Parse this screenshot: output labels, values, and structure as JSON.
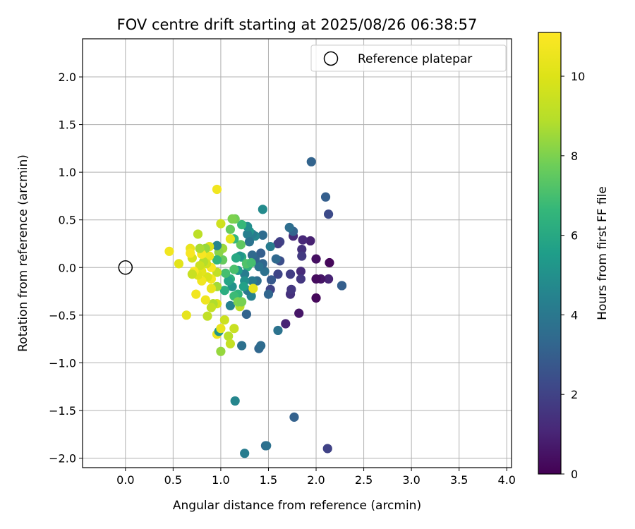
{
  "chart_data": {
    "type": "scatter",
    "title": "FOV centre drift starting at 2025/08/26 06:38:57",
    "xlabel": "Angular distance from reference (arcmin)",
    "ylabel": "Rotation from reference (arcmin)",
    "xlim": [
      -0.45,
      4.05
    ],
    "ylim": [
      -2.1,
      2.4
    ],
    "xticks": [
      "0.0",
      "0.5",
      "1.0",
      "1.5",
      "2.0",
      "2.5",
      "3.0",
      "3.5",
      "4.0"
    ],
    "xtick_values": [
      0,
      0.5,
      1,
      1.5,
      2,
      2.5,
      3,
      3.5,
      4
    ],
    "yticks": [
      "−2.0",
      "−1.5",
      "−1.0",
      "−0.5",
      "0.0",
      "0.5",
      "1.0",
      "1.5",
      "2.0"
    ],
    "ytick_values": [
      -2,
      -1.5,
      -1,
      -0.5,
      0,
      0.5,
      1,
      1.5,
      2
    ],
    "grid": true,
    "legend": {
      "placement": "top-right",
      "entries": [
        "Reference platepar"
      ]
    },
    "reference_point": {
      "x": 0.0,
      "y": 0.0
    },
    "colorbar": {
      "label": "Hours from first FF file",
      "colormap": "viridis",
      "range": [
        0,
        11.1
      ],
      "ticks": [
        "0",
        "2",
        "4",
        "6",
        "8",
        "10"
      ],
      "tick_values": [
        0,
        2,
        4,
        6,
        8,
        10
      ]
    },
    "points": [
      {
        "x": 1.95,
        "y": 1.11,
        "h": 3.2
      },
      {
        "x": 2.1,
        "y": 0.74,
        "h": 3.0
      },
      {
        "x": 2.13,
        "y": 0.56,
        "h": 2.3
      },
      {
        "x": 2.27,
        "y": -0.19,
        "h": 3.5
      },
      {
        "x": 2.27,
        "y": -0.19,
        "h": 3.0
      },
      {
        "x": 2.13,
        "y": -0.12,
        "h": 1.0
      },
      {
        "x": 2.05,
        "y": -0.12,
        "h": 0.6
      },
      {
        "x": 2.0,
        "y": -0.12,
        "h": 0.3
      },
      {
        "x": 2.14,
        "y": 0.05,
        "h": 0.2
      },
      {
        "x": 2.0,
        "y": 0.09,
        "h": 0.4
      },
      {
        "x": 2.0,
        "y": -0.32,
        "h": 0.2
      },
      {
        "x": 1.94,
        "y": 0.28,
        "h": 0.9
      },
      {
        "x": 1.86,
        "y": 0.29,
        "h": 1.1
      },
      {
        "x": 1.85,
        "y": 0.19,
        "h": 1.4
      },
      {
        "x": 1.85,
        "y": 0.12,
        "h": 1.7
      },
      {
        "x": 1.84,
        "y": -0.04,
        "h": 1.2
      },
      {
        "x": 1.84,
        "y": -0.12,
        "h": 1.6
      },
      {
        "x": 1.76,
        "y": 0.33,
        "h": 1.2
      },
      {
        "x": 1.76,
        "y": 0.38,
        "h": 3.2
      },
      {
        "x": 1.72,
        "y": 0.42,
        "h": 3.6
      },
      {
        "x": 1.73,
        "y": -0.07,
        "h": 1.8
      },
      {
        "x": 1.73,
        "y": -0.28,
        "h": 1.4
      },
      {
        "x": 1.74,
        "y": -0.23,
        "h": 1.6
      },
      {
        "x": 1.82,
        "y": -0.48,
        "h": 0.6
      },
      {
        "x": 1.68,
        "y": -0.59,
        "h": 1.0
      },
      {
        "x": 1.6,
        "y": -0.66,
        "h": 3.8
      },
      {
        "x": 1.62,
        "y": 0.27,
        "h": 2.0
      },
      {
        "x": 1.6,
        "y": 0.25,
        "h": 1.8
      },
      {
        "x": 1.62,
        "y": 0.07,
        "h": 2.4
      },
      {
        "x": 1.58,
        "y": 0.09,
        "h": 3.4
      },
      {
        "x": 1.6,
        "y": -0.07,
        "h": 2.1
      },
      {
        "x": 1.53,
        "y": -0.13,
        "h": 2.8
      },
      {
        "x": 1.52,
        "y": -0.23,
        "h": 2.0
      },
      {
        "x": 1.5,
        "y": -0.28,
        "h": 3.3
      },
      {
        "x": 1.52,
        "y": 0.22,
        "h": 4.2
      },
      {
        "x": 1.46,
        "y": -0.04,
        "h": 3.7
      },
      {
        "x": 1.44,
        "y": 0.04,
        "h": 3.3
      },
      {
        "x": 1.42,
        "y": 0.15,
        "h": 3.0
      },
      {
        "x": 1.44,
        "y": 0.34,
        "h": 3.5
      },
      {
        "x": 1.44,
        "y": 0.61,
        "h": 4.8
      },
      {
        "x": 1.4,
        "y": 0.01,
        "h": 3.8
      },
      {
        "x": 1.38,
        "y": -0.14,
        "h": 3.6
      },
      {
        "x": 1.36,
        "y": 0.09,
        "h": 3.2
      },
      {
        "x": 1.36,
        "y": 0.33,
        "h": 4.6
      },
      {
        "x": 1.33,
        "y": 0.35,
        "h": 4.2
      },
      {
        "x": 1.3,
        "y": 0.38,
        "h": 5.2
      },
      {
        "x": 1.28,
        "y": 0.35,
        "h": 4.3
      },
      {
        "x": 1.28,
        "y": 0.43,
        "h": 4.9
      },
      {
        "x": 1.3,
        "y": 0.27,
        "h": 3.8
      },
      {
        "x": 1.33,
        "y": 0.13,
        "h": 3.4
      },
      {
        "x": 1.33,
        "y": -0.14,
        "h": 4.1
      },
      {
        "x": 1.32,
        "y": -0.3,
        "h": 4.4
      },
      {
        "x": 1.28,
        "y": -0.24,
        "h": 4.0
      },
      {
        "x": 1.27,
        "y": -0.49,
        "h": 3.2
      },
      {
        "x": 1.3,
        "y": 0.04,
        "h": 5.6
      },
      {
        "x": 1.28,
        "y": 0.01,
        "h": 6.4
      },
      {
        "x": 1.25,
        "y": -0.07,
        "h": 4.2
      },
      {
        "x": 1.25,
        "y": -0.14,
        "h": 5.0
      },
      {
        "x": 1.24,
        "y": -0.2,
        "h": 5.7
      },
      {
        "x": 1.22,
        "y": 0.11,
        "h": 6.1
      },
      {
        "x": 1.22,
        "y": 0.45,
        "h": 6.7
      },
      {
        "x": 1.21,
        "y": 0.24,
        "h": 7.5
      },
      {
        "x": 1.2,
        "y": 0.12,
        "h": 5.2
      },
      {
        "x": 1.18,
        "y": -0.03,
        "h": 5.4
      },
      {
        "x": 1.18,
        "y": -0.28,
        "h": 6.5
      },
      {
        "x": 1.2,
        "y": -0.41,
        "h": 9.1
      },
      {
        "x": 1.22,
        "y": -0.82,
        "h": 3.7
      },
      {
        "x": 1.4,
        "y": -0.85,
        "h": 3.3
      },
      {
        "x": 1.42,
        "y": -0.82,
        "h": 3.5
      },
      {
        "x": 1.34,
        "y": -0.22,
        "h": 10.3
      },
      {
        "x": 1.15,
        "y": 0.51,
        "h": 7.8
      },
      {
        "x": 1.12,
        "y": 0.51,
        "h": 8.0
      },
      {
        "x": 1.1,
        "y": 0.4,
        "h": 7.6
      },
      {
        "x": 1.14,
        "y": 0.3,
        "h": 6.6
      },
      {
        "x": 1.16,
        "y": 0.1,
        "h": 6.0
      },
      {
        "x": 1.14,
        "y": -0.02,
        "h": 7.1
      },
      {
        "x": 1.14,
        "y": -0.3,
        "h": 6.8
      },
      {
        "x": 1.12,
        "y": -0.2,
        "h": 5.1
      },
      {
        "x": 1.1,
        "y": 0.3,
        "h": 10.3
      },
      {
        "x": 1.1,
        "y": -0.12,
        "h": 6.3
      },
      {
        "x": 1.1,
        "y": -0.4,
        "h": 4.4
      },
      {
        "x": 1.08,
        "y": -0.14,
        "h": 5.8
      },
      {
        "x": 1.05,
        "y": -0.06,
        "h": 7.0
      },
      {
        "x": 1.04,
        "y": -0.24,
        "h": 6.2
      },
      {
        "x": 1.02,
        "y": 0.2,
        "h": 8.5
      },
      {
        "x": 1.02,
        "y": 0.08,
        "h": 7.6
      },
      {
        "x": 1.0,
        "y": 0.46,
        "h": 9.6
      },
      {
        "x": 0.98,
        "y": 0.16,
        "h": 8.2
      },
      {
        "x": 0.96,
        "y": 0.82,
        "h": 10.7
      },
      {
        "x": 0.96,
        "y": 0.23,
        "h": 4.5
      },
      {
        "x": 0.96,
        "y": 0.08,
        "h": 6.6
      },
      {
        "x": 0.96,
        "y": -0.05,
        "h": 9.2
      },
      {
        "x": 0.96,
        "y": -0.2,
        "h": 8.6
      },
      {
        "x": 0.96,
        "y": -0.38,
        "h": 9.8
      },
      {
        "x": 0.96,
        "y": -0.7,
        "h": 10.6
      },
      {
        "x": 0.98,
        "y": -0.67,
        "h": 5.2
      },
      {
        "x": 1.0,
        "y": -0.64,
        "h": 10.4
      },
      {
        "x": 1.0,
        "y": -0.88,
        "h": 8.4
      },
      {
        "x": 1.04,
        "y": -0.55,
        "h": 9.5
      },
      {
        "x": 1.08,
        "y": -0.72,
        "h": 9.0
      },
      {
        "x": 1.1,
        "y": -0.8,
        "h": 9.3
      },
      {
        "x": 1.14,
        "y": -0.64,
        "h": 9.4
      },
      {
        "x": 1.18,
        "y": -0.36,
        "h": 8.0
      },
      {
        "x": 1.22,
        "y": -0.36,
        "h": 7.9
      },
      {
        "x": 1.27,
        "y": 0.04,
        "h": 7.2
      },
      {
        "x": 1.32,
        "y": 0.05,
        "h": 7.0
      },
      {
        "x": 0.92,
        "y": -0.38,
        "h": 8.8
      },
      {
        "x": 0.9,
        "y": -0.42,
        "h": 9.3
      },
      {
        "x": 0.9,
        "y": -0.22,
        "h": 10.4
      },
      {
        "x": 0.9,
        "y": -0.12,
        "h": 10.8
      },
      {
        "x": 0.9,
        "y": 0.0,
        "h": 11.0
      },
      {
        "x": 0.88,
        "y": 0.12,
        "h": 10.5
      },
      {
        "x": 0.88,
        "y": 0.22,
        "h": 10.0
      },
      {
        "x": 0.86,
        "y": -0.1,
        "h": 9.9
      },
      {
        "x": 0.85,
        "y": 0.04,
        "h": 9.6
      },
      {
        "x": 0.84,
        "y": -0.34,
        "h": 10.6
      },
      {
        "x": 0.86,
        "y": -0.51,
        "h": 9.2
      },
      {
        "x": 0.84,
        "y": 0.2,
        "h": 8.4
      },
      {
        "x": 0.82,
        "y": 0.06,
        "h": 8.9
      },
      {
        "x": 0.8,
        "y": -0.04,
        "h": 10.2
      },
      {
        "x": 0.8,
        "y": -0.14,
        "h": 10.7
      },
      {
        "x": 0.8,
        "y": 0.14,
        "h": 10.9
      },
      {
        "x": 0.78,
        "y": 0.2,
        "h": 8.7
      },
      {
        "x": 0.78,
        "y": 0.02,
        "h": 9.5
      },
      {
        "x": 0.76,
        "y": -0.08,
        "h": 10.1
      },
      {
        "x": 0.76,
        "y": 0.35,
        "h": 9.1
      },
      {
        "x": 0.74,
        "y": -0.28,
        "h": 10.7
      },
      {
        "x": 0.72,
        "y": -0.04,
        "h": 10.9
      },
      {
        "x": 0.7,
        "y": 0.1,
        "h": 9.8
      },
      {
        "x": 0.7,
        "y": -0.07,
        "h": 9.4
      },
      {
        "x": 0.68,
        "y": 0.2,
        "h": 10.4
      },
      {
        "x": 0.68,
        "y": 0.15,
        "h": 10.9
      },
      {
        "x": 0.64,
        "y": -0.5,
        "h": 10.3
      },
      {
        "x": 0.56,
        "y": 0.04,
        "h": 10.2
      },
      {
        "x": 0.46,
        "y": 0.17,
        "h": 10.7
      },
      {
        "x": 1.15,
        "y": -1.4,
        "h": 4.6
      },
      {
        "x": 1.25,
        "y": -1.95,
        "h": 4.2
      },
      {
        "x": 1.47,
        "y": -1.87,
        "h": 3.4
      },
      {
        "x": 1.48,
        "y": -1.87,
        "h": 3.7
      },
      {
        "x": 1.77,
        "y": -1.57,
        "h": 3.1
      },
      {
        "x": 2.12,
        "y": -1.9,
        "h": 2.0
      }
    ]
  }
}
